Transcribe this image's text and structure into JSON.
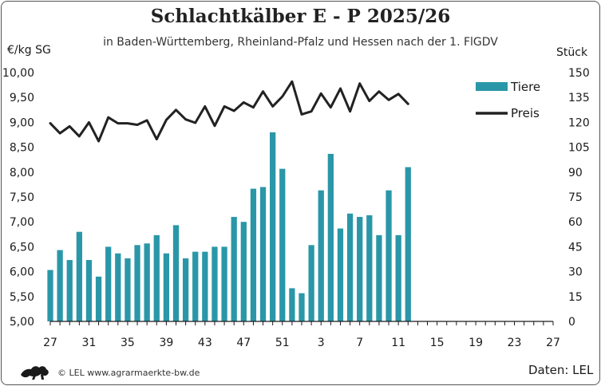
{
  "title": "Schlachtkälber E - P 2025/26",
  "subtitle": "in Baden-Württemberg, Rheinland-Pfalz und Hessen nach der 1. FlGDV",
  "credit": "© LEL www.agrarmaerkte-bw.de",
  "source": "Daten: LEL",
  "colors": {
    "bars": "#2a97a8",
    "line": "#222222",
    "axis": "#1a1a1a"
  },
  "logo_icon": "lion-emblem-icon",
  "chart_data": {
    "type": "bar+line",
    "title": "Schlachtkälber E - P 2025/26",
    "subtitle": "in Baden-Württemberg, Rheinland-Pfalz und Hessen nach der 1. FlGDV",
    "ylabel": "€/kg SG",
    "y2label": "Stück",
    "ylim": [
      5,
      10
    ],
    "y2lim": [
      0,
      150
    ],
    "yticks": [
      "5,00",
      "5,50",
      "6,00",
      "6,50",
      "7,00",
      "7,50",
      "8,00",
      "8,50",
      "9,00",
      "9,50",
      "10,00"
    ],
    "y2ticks": [
      "0",
      "15",
      "30",
      "45",
      "60",
      "75",
      "90",
      "105",
      "120",
      "135",
      "150"
    ],
    "xticks": [
      "27",
      "31",
      "35",
      "39",
      "43",
      "47",
      "51",
      "3",
      "7",
      "11",
      "15",
      "19",
      "23",
      "27"
    ],
    "weeks": [
      27,
      28,
      29,
      30,
      31,
      32,
      33,
      34,
      35,
      36,
      37,
      38,
      39,
      40,
      41,
      42,
      43,
      44,
      45,
      46,
      47,
      48,
      49,
      50,
      51,
      52,
      1,
      2,
      3,
      4,
      5,
      6,
      7,
      8,
      9,
      10,
      11,
      12,
      13,
      14,
      15,
      16,
      17,
      18,
      19,
      20,
      21,
      22,
      23,
      24,
      25,
      26,
      27
    ],
    "legend_position": "top-right",
    "series": [
      {
        "name": "Tiere",
        "type": "bar",
        "axis": "right",
        "values": [
          31,
          43,
          37,
          54,
          37,
          27,
          45,
          41,
          38,
          46,
          47,
          52,
          41,
          58,
          38,
          42,
          42,
          45,
          45,
          63,
          60,
          80,
          81,
          114,
          92,
          20,
          17,
          46,
          79,
          101,
          56,
          65,
          63,
          64,
          52,
          79,
          52,
          93
        ]
      },
      {
        "name": "Preis",
        "type": "line",
        "axis": "left",
        "values": [
          8.98,
          8.78,
          8.92,
          8.72,
          9.0,
          8.62,
          9.1,
          8.98,
          8.98,
          8.95,
          9.04,
          8.66,
          9.05,
          9.25,
          9.06,
          8.99,
          9.32,
          8.93,
          9.32,
          9.23,
          9.4,
          9.3,
          9.62,
          9.32,
          9.52,
          9.82,
          9.16,
          9.22,
          9.58,
          9.3,
          9.68,
          9.22,
          9.78,
          9.43,
          9.62,
          9.45,
          9.57,
          9.37
        ]
      }
    ]
  }
}
